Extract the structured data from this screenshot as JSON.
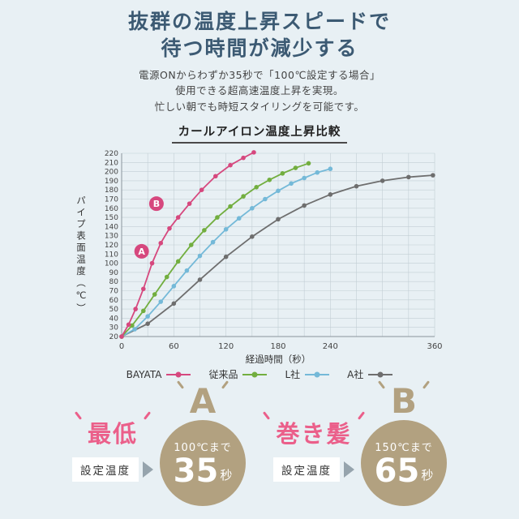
{
  "header": {
    "title_line1": "抜群の温度上昇スピードで",
    "title_line2": "待つ時間が減少する",
    "description_line1": "電源ONからわずか35秒で「100℃設定する場合」",
    "description_line2": "使用できる超高速温度上昇を実現。",
    "description_line3": "忙しい朝でも時短スタイリングを可能です。"
  },
  "chart_data": {
    "type": "line",
    "title": "カールアイロン温度上昇比較",
    "xlabel": "経過時間（秒）",
    "ylabel": "パイプ表面温度（℃）",
    "xlim": [
      0,
      360
    ],
    "ylim": [
      20,
      220
    ],
    "x_ticks": [
      0,
      60,
      120,
      180,
      240,
      360
    ],
    "y_tick_step": 10,
    "grid": true,
    "grid_color": "#c2ced4",
    "legend_position": "bottom",
    "series": [
      {
        "name": "BAYATA",
        "color": "#d6487e",
        "points": [
          [
            0,
            20
          ],
          [
            8,
            33
          ],
          [
            16,
            50
          ],
          [
            25,
            72
          ],
          [
            35,
            100
          ],
          [
            45,
            122
          ],
          [
            55,
            138
          ],
          [
            65,
            150
          ],
          [
            78,
            165
          ],
          [
            92,
            180
          ],
          [
            108,
            195
          ],
          [
            125,
            207
          ],
          [
            140,
            215
          ],
          [
            152,
            221
          ]
        ]
      },
      {
        "name": "従来品",
        "color": "#72ae3f",
        "points": [
          [
            0,
            20
          ],
          [
            12,
            32
          ],
          [
            25,
            48
          ],
          [
            38,
            66
          ],
          [
            52,
            85
          ],
          [
            65,
            102
          ],
          [
            80,
            120
          ],
          [
            95,
            136
          ],
          [
            110,
            150
          ],
          [
            125,
            162
          ],
          [
            140,
            173
          ],
          [
            155,
            183
          ],
          [
            170,
            191
          ],
          [
            185,
            198
          ],
          [
            200,
            204
          ],
          [
            215,
            209
          ]
        ]
      },
      {
        "name": "L社",
        "color": "#74b9d8",
        "points": [
          [
            0,
            20
          ],
          [
            15,
            28
          ],
          [
            30,
            42
          ],
          [
            45,
            58
          ],
          [
            60,
            75
          ],
          [
            75,
            92
          ],
          [
            90,
            108
          ],
          [
            105,
            123
          ],
          [
            120,
            137
          ],
          [
            135,
            149
          ],
          [
            150,
            160
          ],
          [
            165,
            170
          ],
          [
            180,
            179
          ],
          [
            195,
            187
          ],
          [
            210,
            193
          ],
          [
            225,
            199
          ],
          [
            240,
            203
          ]
        ]
      },
      {
        "name": "A社",
        "color": "#6e6e6e",
        "points": [
          [
            0,
            20
          ],
          [
            30,
            34
          ],
          [
            60,
            56
          ],
          [
            90,
            82
          ],
          [
            120,
            107
          ],
          [
            150,
            129
          ],
          [
            180,
            148
          ],
          [
            210,
            163
          ],
          [
            240,
            175
          ],
          [
            270,
            184
          ],
          [
            300,
            190
          ],
          [
            330,
            194
          ],
          [
            358,
            196
          ]
        ]
      }
    ],
    "annotations": [
      {
        "label": "A",
        "x": 23,
        "y": 113,
        "color": "#d6487e"
      },
      {
        "label": "B",
        "x": 40,
        "y": 165,
        "color": "#d6487e"
      }
    ]
  },
  "callouts": [
    {
      "tag": "最低",
      "condition": "設定温度",
      "letter": "A",
      "temp_label": "100℃まで",
      "time_value": "35",
      "time_unit": "秒"
    },
    {
      "tag": "巻き髪",
      "condition": "設定温度",
      "letter": "B",
      "temp_label": "150℃まで",
      "time_value": "65",
      "time_unit": "秒"
    }
  ],
  "colors": {
    "accent_pink": "#d6487e",
    "green": "#72ae3f",
    "blue": "#74b9d8",
    "gray": "#6e6e6e",
    "tan": "#b2a180",
    "heading": "#3c5a73",
    "background": "#e8f0f4"
  }
}
